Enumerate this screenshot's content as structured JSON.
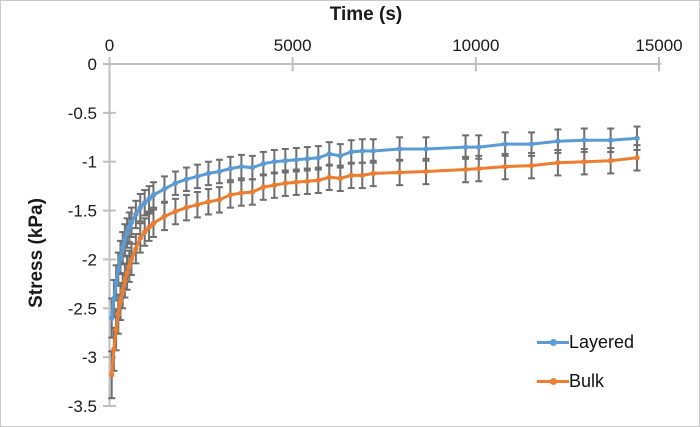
{
  "figure": {
    "background": "#ffffff",
    "border_color": "#c9c9c9"
  },
  "chart_data": {
    "type": "line",
    "title": "",
    "xlabel": "Time (s)",
    "ylabel": "Stress (kPa)",
    "grid": false,
    "legend_position": "inside-bottom-right",
    "x_axis": {
      "position": "top",
      "min": 0,
      "max": 15000,
      "ticks": [
        0,
        5000,
        10000,
        15000
      ]
    },
    "y_axis": {
      "min": -3.5,
      "max": 0,
      "ticks": [
        0,
        -0.5,
        -1,
        -1.5,
        -2,
        -2.5,
        -3,
        -3.5
      ]
    },
    "axis_color": "#bfbfbf",
    "error_bar_color": "#6e6e6e",
    "text_color": "#1a1a1a",
    "x": [
      60,
      120,
      180,
      240,
      300,
      360,
      420,
      480,
      540,
      600,
      720,
      840,
      960,
      1080,
      1200,
      1500,
      1800,
      2100,
      2400,
      2700,
      3000,
      3300,
      3600,
      3900,
      4200,
      4500,
      4800,
      5100,
      5400,
      5700,
      6000,
      6300,
      6600,
      6900,
      7200,
      7920,
      8640,
      9720,
      10080,
      10800,
      11520,
      12240,
      12960,
      13680,
      14400
    ],
    "series": [
      {
        "name": "Layered",
        "color": "#5B9BD5",
        "values": [
          -2.6,
          -2.4,
          -2.24,
          -2.1,
          -1.98,
          -1.88,
          -1.8,
          -1.73,
          -1.67,
          -1.62,
          -1.54,
          -1.47,
          -1.42,
          -1.38,
          -1.34,
          -1.28,
          -1.22,
          -1.18,
          -1.15,
          -1.12,
          -1.1,
          -1.07,
          -1.05,
          -1.06,
          -1.02,
          -1.0,
          -0.99,
          -0.98,
          -0.97,
          -0.96,
          -0.92,
          -0.94,
          -0.9,
          -0.89,
          -0.89,
          -0.87,
          -0.87,
          -0.85,
          -0.85,
          -0.82,
          -0.82,
          -0.79,
          -0.78,
          -0.78,
          -0.76
        ],
        "errors": [
          0.2,
          0.19,
          0.18,
          0.17,
          0.17,
          0.16,
          0.16,
          0.15,
          0.15,
          0.15,
          0.14,
          0.14,
          0.13,
          0.13,
          0.13,
          0.13,
          0.12,
          0.12,
          0.12,
          0.12,
          0.12,
          0.12,
          0.12,
          0.12,
          0.12,
          0.12,
          0.12,
          0.12,
          0.12,
          0.12,
          0.12,
          0.12,
          0.12,
          0.12,
          0.12,
          0.12,
          0.12,
          0.12,
          0.12,
          0.12,
          0.12,
          0.12,
          0.12,
          0.12,
          0.12
        ]
      },
      {
        "name": "Bulk",
        "color": "#ED7D31",
        "values": [
          -3.18,
          -2.92,
          -2.72,
          -2.56,
          -2.43,
          -2.32,
          -2.22,
          -2.14,
          -2.07,
          -2.0,
          -1.89,
          -1.78,
          -1.72,
          -1.67,
          -1.63,
          -1.56,
          -1.51,
          -1.47,
          -1.44,
          -1.41,
          -1.39,
          -1.34,
          -1.32,
          -1.31,
          -1.26,
          -1.24,
          -1.22,
          -1.21,
          -1.2,
          -1.19,
          -1.16,
          -1.17,
          -1.14,
          -1.14,
          -1.12,
          -1.11,
          -1.1,
          -1.08,
          -1.07,
          -1.05,
          -1.04,
          -1.01,
          -1.0,
          -0.99,
          -0.96
        ],
        "errors": [
          0.24,
          0.22,
          0.21,
          0.2,
          0.19,
          0.18,
          0.17,
          0.17,
          0.16,
          0.16,
          0.15,
          0.15,
          0.14,
          0.14,
          0.14,
          0.14,
          0.13,
          0.13,
          0.13,
          0.13,
          0.13,
          0.13,
          0.13,
          0.13,
          0.13,
          0.13,
          0.13,
          0.13,
          0.13,
          0.13,
          0.13,
          0.13,
          0.13,
          0.13,
          0.13,
          0.13,
          0.13,
          0.13,
          0.13,
          0.13,
          0.13,
          0.13,
          0.13,
          0.13,
          0.13
        ]
      }
    ]
  }
}
